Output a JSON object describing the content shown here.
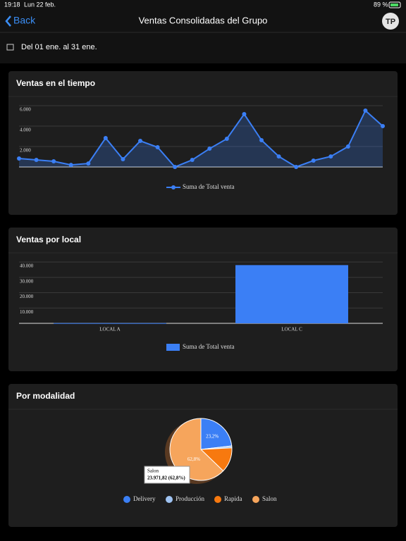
{
  "status": {
    "time": "19:18",
    "date": "Lun 22 feb.",
    "battery": "89 %"
  },
  "nav": {
    "back": "Back",
    "title": "Ventas Consolidadas del Grupo",
    "avatar": "TP"
  },
  "date_range": "Del 01 ene. al 31 ene.",
  "chart_data": [
    {
      "type": "line",
      "title": "Ventas en el tiempo",
      "series": [
        {
          "name": "Suma de Total venta",
          "color": "#3b7ff5",
          "values": [
            830,
            690,
            550,
            200,
            340,
            2830,
            760,
            2550,
            1930,
            0,
            690,
            1790,
            2760,
            5170,
            2620,
            1030,
            0,
            620,
            1030,
            2000,
            5520,
            4000
          ]
        }
      ],
      "ylim": [
        0,
        6000
      ],
      "yticks": [
        {
          "value": 2000,
          "label": "2.000"
        },
        {
          "value": 4000,
          "label": "4.000"
        },
        {
          "value": 6000,
          "label": "6.000"
        }
      ],
      "grid": true
    },
    {
      "type": "bar",
      "title": "Ventas por local",
      "categories": [
        "LOCAL A",
        "LOCAL C"
      ],
      "series": [
        {
          "name": "Suma de Total venta",
          "color": "#3b7ff5",
          "values": [
            150,
            38000
          ]
        }
      ],
      "ylim": [
        0,
        40000
      ],
      "yticks": [
        {
          "value": 10000,
          "label": "10.000"
        },
        {
          "value": 20000,
          "label": "20.000"
        },
        {
          "value": 30000,
          "label": "30.000"
        },
        {
          "value": 40000,
          "label": "40.000"
        }
      ],
      "grid": true
    },
    {
      "type": "pie",
      "title": "Por modalidad",
      "categories": [
        "Delivery",
        "Producción",
        "Rapida",
        "Salon"
      ],
      "values": [
        23.2,
        1.0,
        13.0,
        62.8
      ],
      "value_labels": [
        "23,2%",
        null,
        null,
        "62,8%"
      ],
      "colors": [
        "#3b7ff5",
        "#9fc3f2",
        "#f7790f",
        "#f6a55c"
      ],
      "tooltip": {
        "label": "Salon",
        "text": "23.971,82 (62,8%)"
      }
    }
  ]
}
